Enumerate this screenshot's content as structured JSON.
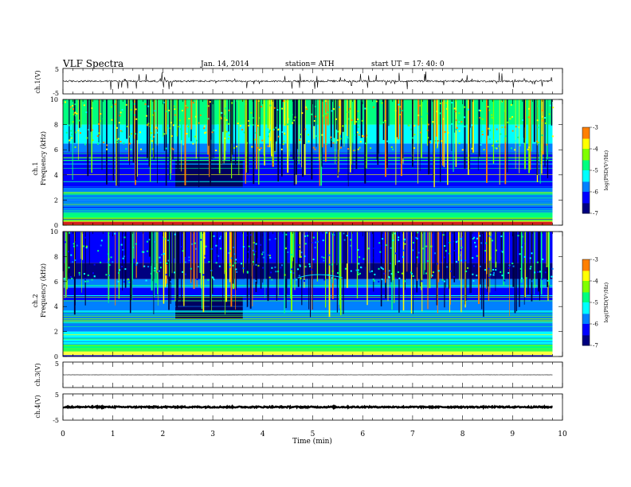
{
  "header": {
    "title": "VLF  Spectra",
    "date": "Jan. 14, 2014",
    "station": "station= ATH",
    "start": "start  UT  =    17: 40: 0"
  },
  "chart_data": [
    {
      "type": "line",
      "name": "waveform-ch1",
      "ylabel": "ch.1(V)",
      "ylim": [
        -5,
        5
      ],
      "yticks": [
        "5",
        "-5"
      ],
      "trace": {
        "level": 0.0,
        "noise": 0.35,
        "spike": 1.6
      }
    },
    {
      "type": "heatmap",
      "name": "spectrogram-ch1",
      "ylabel": "ch.1",
      "ylabel2": "Frequency  (kHz)",
      "ylim": [
        0,
        10
      ],
      "yticks": [
        "0",
        "2",
        "4",
        "6",
        "8",
        "10"
      ],
      "colorbar": {
        "label": "log(PSD(V²/Hz)",
        "range": [
          -7,
          -3
        ],
        "ticks": [
          "-3",
          "-4",
          "-5",
          "-6",
          "-7"
        ]
      },
      "quiet_interval_min": [
        2.25,
        3.6
      ],
      "features": [
        "broadband sferics",
        "narrowband transmitter lines",
        "strong low-frequency band below 0.5 kHz"
      ]
    },
    {
      "type": "heatmap",
      "name": "spectrogram-ch2",
      "ylabel": "ch.2",
      "ylabel2": "Frequency  (kHz)",
      "ylim": [
        0,
        10
      ],
      "yticks": [
        "0",
        "2",
        "4",
        "6",
        "8",
        "10"
      ],
      "colorbar": {
        "label": "log(PSD(V²/Hz)",
        "range": [
          -7,
          -3
        ],
        "ticks": [
          "-3",
          "-4",
          "-5",
          "-6",
          "-7"
        ]
      },
      "quiet_interval_min": [
        2.25,
        3.6
      ],
      "features": [
        "broadband sferics",
        "narrowband transmitter lines",
        "band near 6.5 kHz at 4.7-5.6 min"
      ]
    },
    {
      "type": "line",
      "name": "waveform-ch3",
      "ylabel": "ch.3(V)",
      "ylim": [
        -5,
        5
      ],
      "yticks": [
        "5",
        "-5"
      ],
      "trace": {
        "level": 0.0,
        "noise": 0.02,
        "spike": 0.0
      }
    },
    {
      "type": "line",
      "name": "waveform-ch4",
      "ylabel": "ch.4(V)",
      "ylim": [
        -5,
        5
      ],
      "yticks": [
        "5",
        "-5"
      ],
      "trace": {
        "level": 0.0,
        "noise": 0.25,
        "spike": 0.0
      }
    }
  ],
  "xaxis": {
    "label": "Time  (min)",
    "range": [
      0,
      10
    ],
    "ticks": [
      "0",
      "1",
      "2",
      "3",
      "4",
      "5",
      "6",
      "7",
      "8",
      "9",
      "10"
    ],
    "data_end_min": 9.8
  },
  "colors": {
    "colormap": [
      "#000080",
      "#0000ff",
      "#0080ff",
      "#00ffff",
      "#00ff80",
      "#80ff00",
      "#ffff00",
      "#ff8000",
      "#ff0000",
      "#ffffff"
    ],
    "trace": "#000000"
  }
}
